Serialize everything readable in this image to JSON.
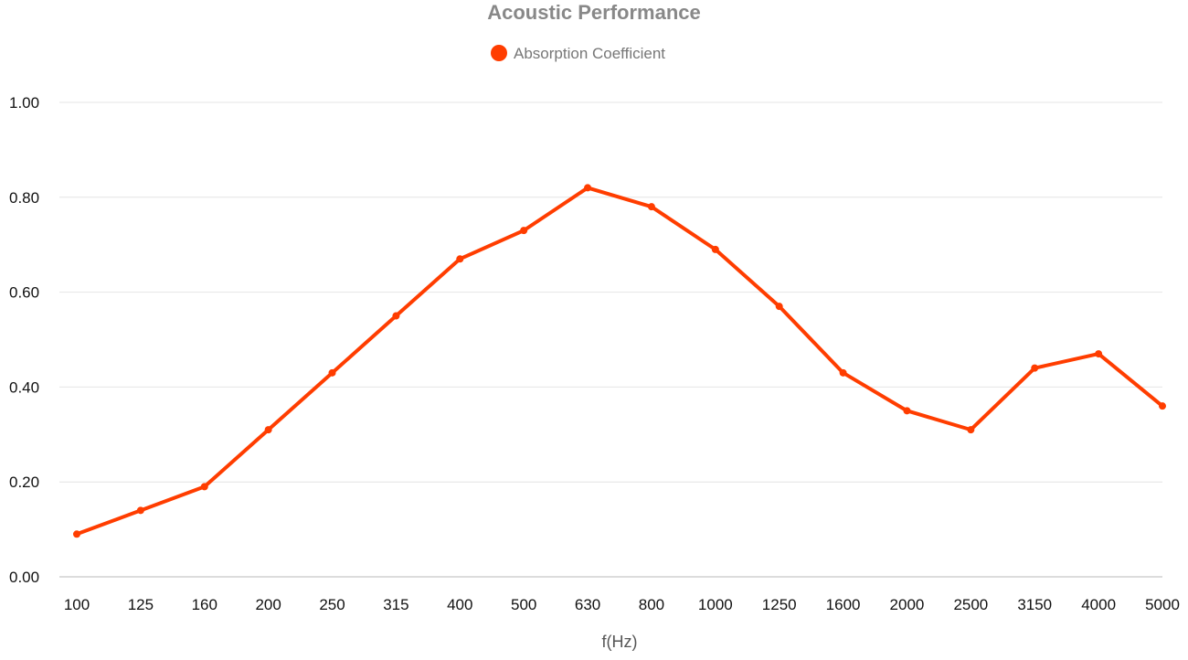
{
  "chart_data": {
    "type": "line",
    "title": "Acoustic Performance",
    "xlabel": "f(Hz)",
    "ylabel": "",
    "categories": [
      "100",
      "125",
      "160",
      "200",
      "250",
      "315",
      "400",
      "500",
      "630",
      "800",
      "1000",
      "1250",
      "1600",
      "2000",
      "2500",
      "3150",
      "4000",
      "5000"
    ],
    "series": [
      {
        "name": "Absorption Coefficient",
        "values": [
          0.09,
          0.14,
          0.19,
          0.31,
          0.43,
          0.55,
          0.67,
          0.73,
          0.82,
          0.78,
          0.69,
          0.57,
          0.43,
          0.35,
          0.31,
          0.44,
          0.47,
          0.36
        ]
      }
    ],
    "ylim": [
      0,
      1
    ],
    "yticks": [
      "0.00",
      "0.20",
      "0.40",
      "0.60",
      "0.80",
      "1.00"
    ],
    "grid": true,
    "legend": "top-center",
    "colors": {
      "line": "#ff3d00",
      "title": "#888888",
      "grid": "#e4e4e4"
    }
  }
}
